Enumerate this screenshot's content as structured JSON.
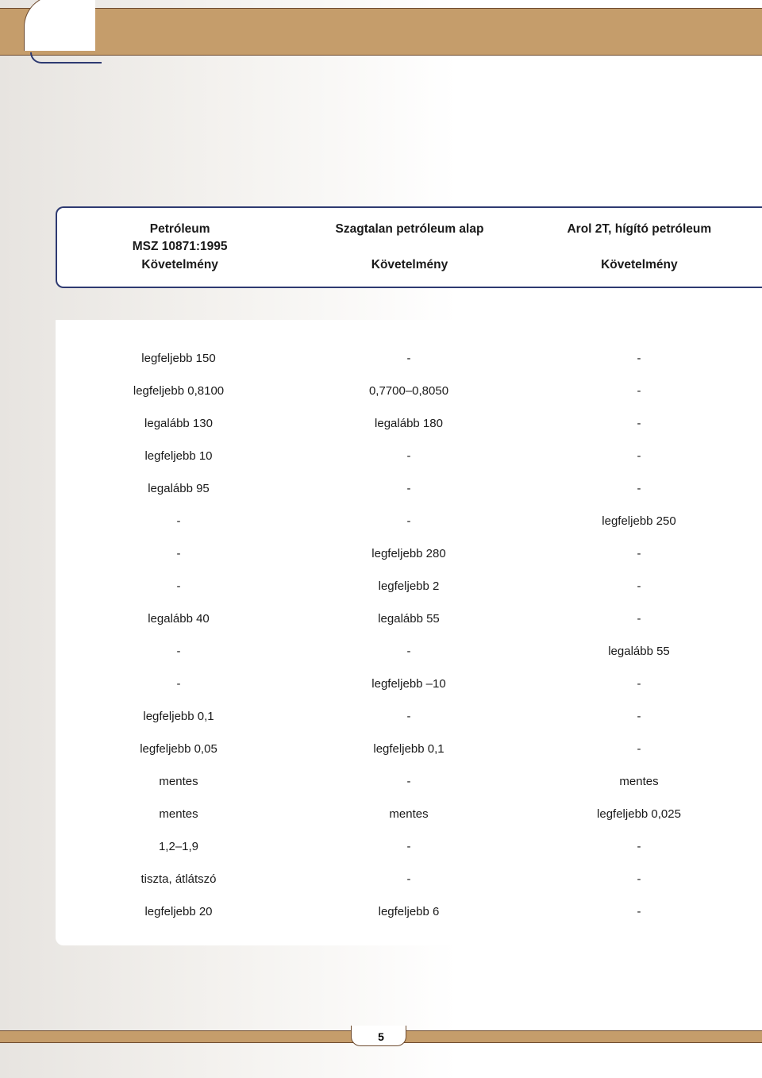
{
  "page_number": "5",
  "columns": [
    {
      "title": "Petróleum",
      "sub1": "MSZ 10871:1995",
      "sub2": "Követelmény"
    },
    {
      "title": "Szagtalan petróleum alap",
      "sub1": "",
      "sub2": "Követelmény"
    },
    {
      "title": "Arol 2T, hígító petróleum",
      "sub1": "",
      "sub2": "Követelmény"
    }
  ],
  "rows": [
    [
      "legfeljebb 150",
      "-",
      "-"
    ],
    [
      "legfeljebb 0,8100",
      "0,7700–0,8050",
      "-"
    ],
    [
      "legalább 130",
      "legalább 180",
      "-"
    ],
    [
      "legfeljebb 10",
      "-",
      "-"
    ],
    [
      "legalább 95",
      "-",
      "-"
    ],
    [
      "-",
      "-",
      "legfeljebb 250"
    ],
    [
      "-",
      "legfeljebb 280",
      "-"
    ],
    [
      "-",
      "legfeljebb 2",
      "-"
    ],
    [
      "legalább 40",
      "legalább 55",
      "-"
    ],
    [
      "-",
      "-",
      "legalább 55"
    ],
    [
      "-",
      "legfeljebb –10",
      "-"
    ],
    [
      "legfeljebb 0,1",
      "-",
      "-"
    ],
    [
      "legfeljebb 0,05",
      "legfeljebb 0,1",
      "-"
    ],
    [
      "mentes",
      "-",
      "mentes"
    ],
    [
      "mentes",
      "mentes",
      "legfeljebb 0,025"
    ],
    [
      "1,2–1,9",
      "-",
      "-"
    ],
    [
      "tiszta, átlátszó",
      "-",
      "-"
    ],
    [
      "legfeljebb 20",
      "legfeljebb 6",
      "-"
    ]
  ],
  "colors": {
    "band": "#c59d6b",
    "band_border": "#6d4a2e",
    "frame": "#2e3a71",
    "text": "#1a1a1a",
    "bg_left": "#e7e4e0",
    "bg_right": "#ffffff"
  },
  "fonts": {
    "header_size_pt": 12,
    "body_size_pt": 11,
    "header_weight": "bold"
  }
}
